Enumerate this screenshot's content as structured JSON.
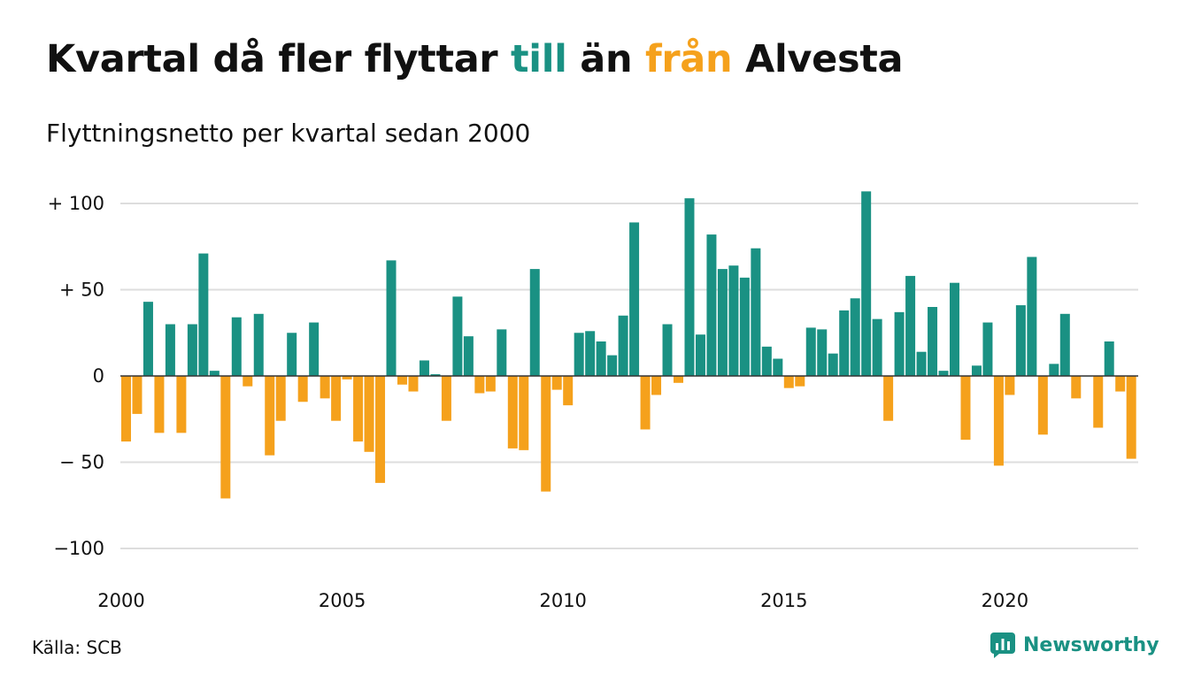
{
  "title": {
    "part1": "Kvartal då fler flyttar ",
    "part2": "till",
    "part3": " än ",
    "part4": "från",
    "part5": " Alvesta"
  },
  "subtitle": "Flyttningsnetto per kvartal sedan 2000",
  "source": "Källa: SCB",
  "brand": "Newsworthy",
  "colors": {
    "positive": "#1a9183",
    "negative": "#f5a11c",
    "brand": "#1a9183",
    "grid": "#dddddd"
  },
  "chart_data": {
    "type": "bar",
    "ylim": [
      -100,
      110
    ],
    "y_ticks": [
      {
        "value": 100,
        "label": "+ 100"
      },
      {
        "value": 50,
        "label": "+  50"
      },
      {
        "value": 0,
        "label": "0"
      },
      {
        "value": -50,
        "label": "− 50"
      },
      {
        "value": -100,
        "label": "−100"
      }
    ],
    "x_start_year": 2000,
    "x_ticks": [
      "2000",
      "2005",
      "2010",
      "2015",
      "2020"
    ],
    "grid": true,
    "values": [
      -38,
      -22,
      43,
      -33,
      30,
      -33,
      30,
      71,
      3,
      -71,
      34,
      -6,
      36,
      -46,
      -26,
      25,
      -15,
      31,
      -13,
      -26,
      -2,
      -38,
      -44,
      -62,
      67,
      -5,
      -9,
      9,
      1,
      -26,
      46,
      23,
      -10,
      -9,
      27,
      -42,
      -43,
      62,
      -67,
      -8,
      -17,
      25,
      26,
      20,
      12,
      35,
      89,
      -31,
      -11,
      30,
      -4,
      103,
      24,
      82,
      62,
      64,
      57,
      74,
      17,
      10,
      -7,
      -6,
      28,
      27,
      13,
      38,
      45,
      107,
      33,
      -26,
      37,
      58,
      14,
      40,
      3,
      54,
      -37,
      6,
      31,
      -52,
      -11,
      41,
      69,
      -34,
      7,
      36,
      -13,
      0,
      -30,
      20,
      -9,
      -48
    ]
  }
}
